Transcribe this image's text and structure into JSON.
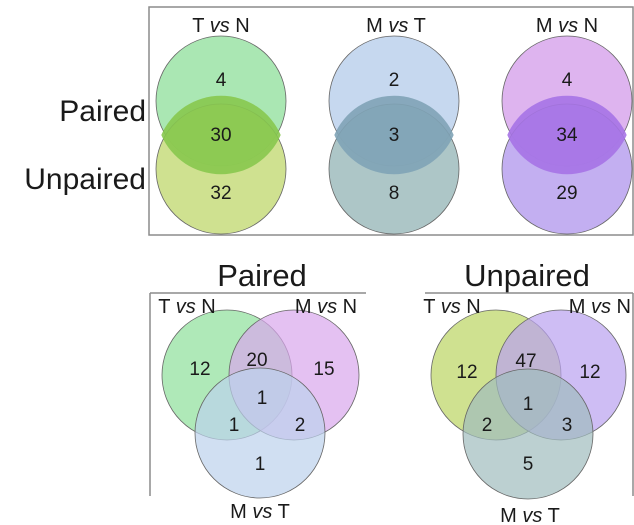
{
  "top_panel": {
    "row_labels": {
      "paired": "Paired",
      "unpaired": "Unpaired"
    },
    "comparisons": [
      {
        "prefix": "T ",
        "vs": "vs",
        "suffix": " N",
        "paired_only": "4",
        "both": "30",
        "unpaired_only": "32",
        "colors": {
          "paired": "#9be3a6",
          "unpaired": "#c7dc7d",
          "overlap": "#87c84e"
        }
      },
      {
        "prefix": "M ",
        "vs": "vs",
        "suffix": " T",
        "paired_only": "2",
        "both": "3",
        "unpaired_only": "8",
        "colors": {
          "paired": "#bcd1ec",
          "unpaired": "#9fbcbd",
          "overlap": "#7fa3b6"
        }
      },
      {
        "prefix": "M ",
        "vs": "vs",
        "suffix": " N",
        "paired_only": "4",
        "both": "34",
        "unpaired_only": "29",
        "colors": {
          "paired": "#d8a7ec",
          "unpaired": "#b9a1ef",
          "overlap": "#a673e5"
        }
      }
    ]
  },
  "bottom_panels": [
    {
      "title": "Paired",
      "sets": {
        "TN": {
          "prefix": "T ",
          "vs": "vs",
          "suffix": " N",
          "color": "#9be3a6"
        },
        "MN": {
          "prefix": "M ",
          "vs": "vs",
          "suffix": " N",
          "color": "#d8a7ec"
        },
        "MT": {
          "prefix": "M ",
          "vs": "vs",
          "suffix": " T",
          "color": "#bcd1ec"
        }
      },
      "regions": {
        "TN_only": "12",
        "MN_only": "15",
        "MT_only": "1",
        "TN_MN": "20",
        "TN_MT": "1",
        "MN_MT": "2",
        "all": "1"
      }
    },
    {
      "title": "Unpaired",
      "sets": {
        "TN": {
          "prefix": "T ",
          "vs": "vs",
          "suffix": " N",
          "color": "#c7dc7d"
        },
        "MN": {
          "prefix": "M ",
          "vs": "vs",
          "suffix": " N",
          "color": "#b9a1ef"
        },
        "MT": {
          "prefix": "M ",
          "vs": "vs",
          "suffix": " T",
          "color": "#9fbcbd"
        }
      },
      "regions": {
        "TN_only": "12",
        "MN_only": "12",
        "MT_only": "5",
        "TN_MN": "47",
        "TN_MT": "2",
        "MN_MT": "3",
        "all": "1"
      }
    }
  ],
  "colors": {
    "frame": "#8c8c8c",
    "stroke": "#666666"
  }
}
